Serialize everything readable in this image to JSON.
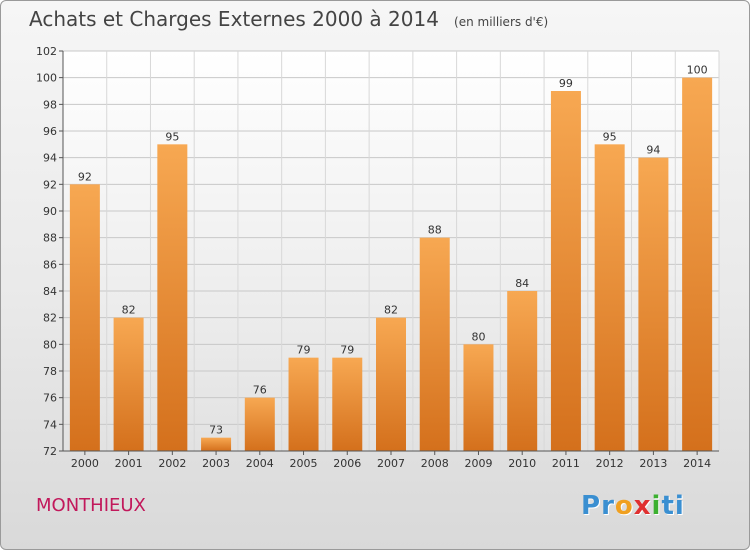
{
  "header": {
    "title": "Achats et Charges Externes 2000 à 2014",
    "unit": "(en milliers d'€)"
  },
  "footer": {
    "commune": "MONTHIEUX",
    "brand_letters": [
      "P",
      "r",
      "o",
      "x",
      "i",
      "t",
      "i"
    ],
    "brand_colors": [
      "#3a8fd1",
      "#3a8fd1",
      "#f0a020",
      "#e03030",
      "#3cb030",
      "#3a8fd1",
      "#3a8fd1"
    ]
  },
  "chart_data": {
    "type": "bar",
    "title": "Achats et Charges Externes 2000 à 2014",
    "categories": [
      "2000",
      "2001",
      "2002",
      "2003",
      "2004",
      "2005",
      "2006",
      "2007",
      "2008",
      "2009",
      "2010",
      "2011",
      "2012",
      "2013",
      "2014"
    ],
    "values": [
      92,
      82,
      95,
      73,
      76,
      79,
      79,
      82,
      88,
      80,
      84,
      99,
      95,
      94,
      100
    ],
    "ylim": [
      72,
      102
    ],
    "yticks": [
      72,
      74,
      76,
      78,
      80,
      82,
      84,
      86,
      88,
      90,
      92,
      94,
      96,
      98,
      100,
      102
    ],
    "grid": true,
    "bar_color": "#f0a04a"
  }
}
